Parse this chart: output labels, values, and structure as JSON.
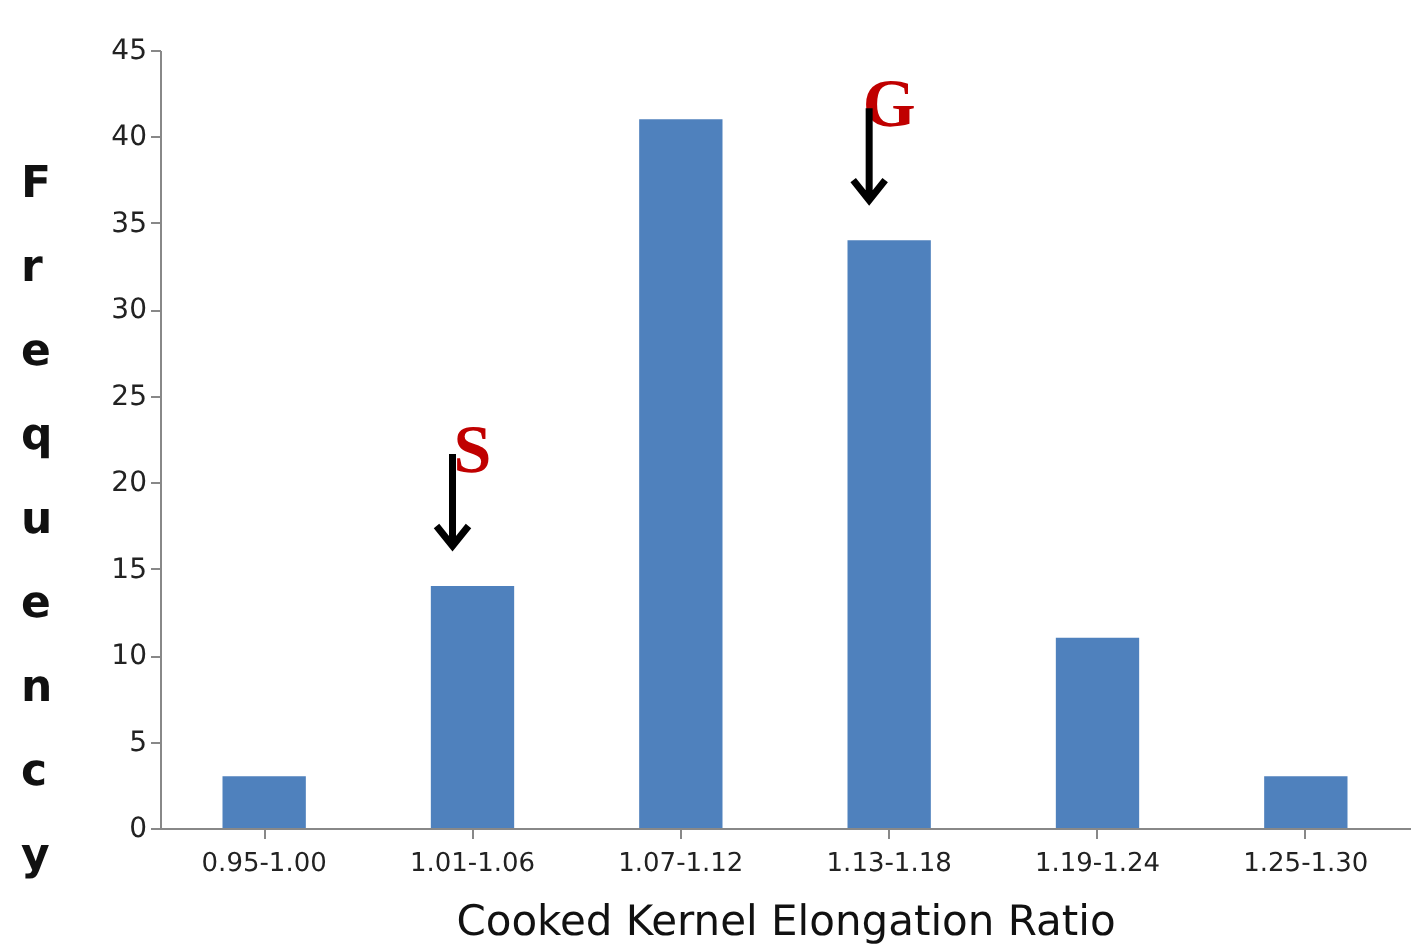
{
  "chart_data": {
    "type": "bar",
    "xlabel": "Cooked Kernel Elongation Ratio",
    "ylabel": "Frequency",
    "categories": [
      "0.95-1.00",
      "1.01-1.06",
      "1.07-1.12",
      "1.13-1.18",
      "1.19-1.24",
      "1.25-1.30"
    ],
    "values": [
      3,
      14,
      41,
      34,
      11,
      3
    ],
    "color": "#4f81bd",
    "ylim": [
      0,
      45
    ],
    "yticks": [
      0,
      5,
      10,
      15,
      20,
      25,
      30,
      35,
      40,
      45
    ],
    "grid": false,
    "annotations": [
      {
        "text": "S",
        "x": "1.01-1.06",
        "y": 14
      },
      {
        "text": "G",
        "x": "1.13-1.18",
        "y": 34
      }
    ]
  }
}
